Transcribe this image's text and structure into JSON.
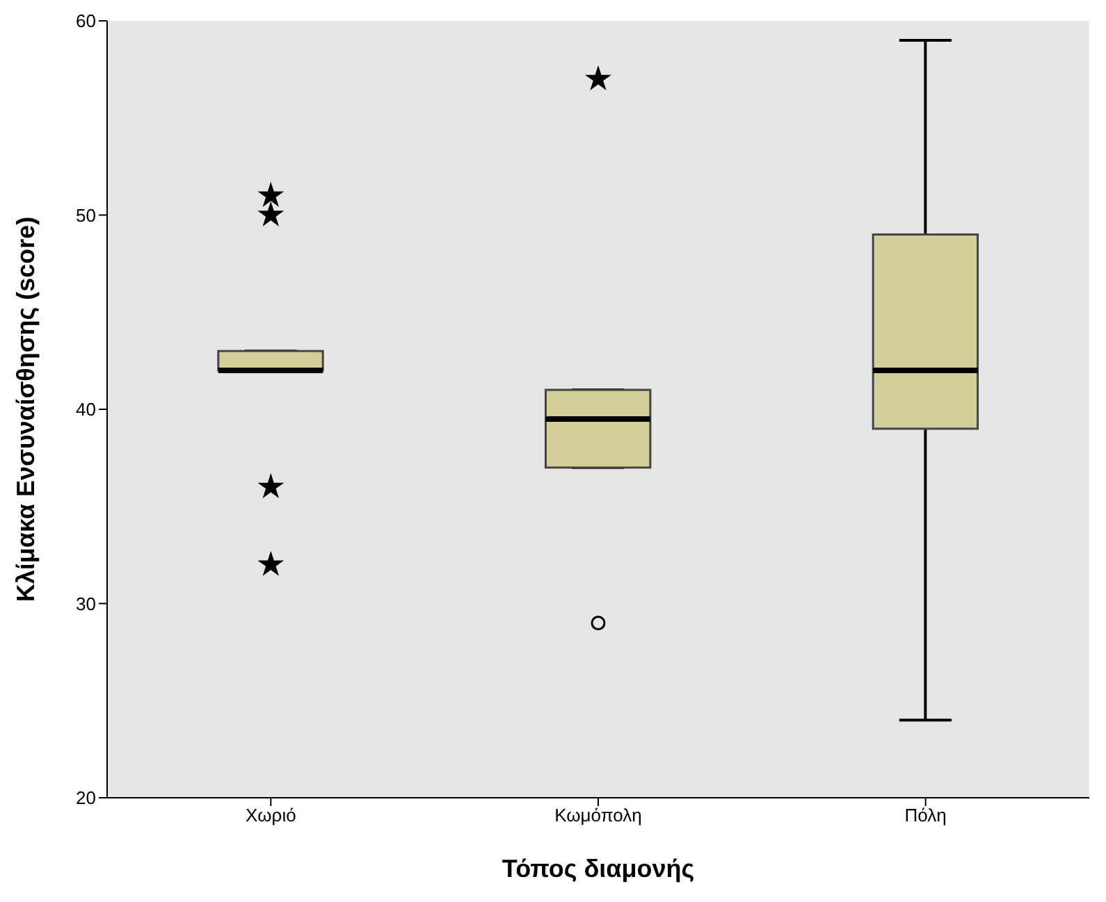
{
  "chart_data": {
    "type": "box",
    "xlabel": "Τόπος διαμονής",
    "ylabel": "Κλίμακα Ενσυναίσθησης (score)",
    "categories": [
      "Χωριό",
      "Κωμόπολη",
      "Πόλη"
    ],
    "color": "#d3ce9a",
    "boxes": [
      {
        "low": 42,
        "q1": 42,
        "median": 42,
        "q3": 43,
        "high": 43
      },
      {
        "low": 37,
        "q1": 37,
        "median": 39.5,
        "q3": 41,
        "high": 41
      },
      {
        "low": 24,
        "q1": 39,
        "median": 42,
        "q3": 49,
        "high": 59
      }
    ],
    "series": [
      {
        "type": "scatter",
        "marker": "star",
        "color": "#000000",
        "x": [
          "Χωριό",
          "Χωριό",
          "Χωριό",
          "Χωριό",
          "Κωμόπολη"
        ],
        "values": [
          51,
          50,
          36,
          32,
          57
        ]
      },
      {
        "type": "scatter",
        "marker": "circle",
        "color": "#000000",
        "x": [
          "Κωμόπολη"
        ],
        "values": [
          29
        ]
      }
    ],
    "ylim": [
      20,
      60
    ],
    "yticks": [
      20,
      30,
      40,
      50,
      60
    ],
    "grid": false
  }
}
